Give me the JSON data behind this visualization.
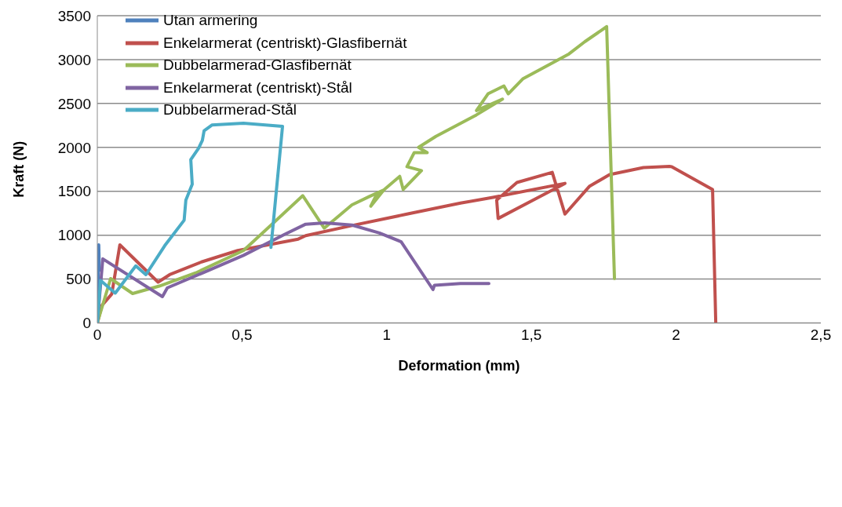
{
  "chart_data": {
    "type": "line",
    "xlabel": "Deformation (mm)",
    "ylabel": "Kraft (N)",
    "xlim": [
      0,
      2.5
    ],
    "xticks": [
      0,
      {
        "value": 0.5,
        "label": "0,5"
      },
      1,
      {
        "value": 1.5,
        "label": "1,5"
      },
      2,
      {
        "value": 2.5,
        "label": "2,5"
      }
    ],
    "ylim": [
      0,
      3500
    ],
    "yticks": [
      0,
      500,
      1000,
      1500,
      2000,
      2500,
      3000,
      3500
    ],
    "grid": "y",
    "legend": "top left",
    "marker": "none",
    "line_style": "solid",
    "series": [
      {
        "name": "Utan armering",
        "color": "#4f81bd",
        "x": [
          0,
          0.005,
          0.007
        ],
        "values": [
          0,
          890,
          600
        ]
      },
      {
        "name": "Enkelarmerat (centriskt)-Glasfibernät",
        "color": "#c0504d",
        "x": [
          0,
          0.016,
          0.05,
          0.078,
          0.21,
          0.25,
          0.36,
          0.485,
          0.694,
          0.72,
          0.88,
          1.07,
          1.255,
          1.367,
          1.616,
          1.385,
          1.38,
          1.45,
          1.572,
          1.616,
          1.7,
          1.77,
          1.887,
          1.977,
          1.985,
          2.126,
          2.137
        ],
        "values": [
          0,
          200,
          330,
          890,
          465,
          550,
          695,
          825,
          955,
          995,
          1110,
          1240,
          1365,
          1430,
          1590,
          1190,
          1400,
          1600,
          1715,
          1240,
          1555,
          1690,
          1770,
          1783,
          1780,
          1520,
          0
        ]
      },
      {
        "name": "Dubbelarmerad-Glasfibernät",
        "color": "#9bbb59",
        "x": [
          0,
          0.046,
          0.122,
          0.214,
          0.34,
          0.505,
          0.594,
          0.71,
          0.784,
          0.835,
          0.88,
          0.94,
          0.99,
          0.945,
          0.96,
          1.045,
          1.057,
          1.12,
          1.07,
          1.095,
          1.14,
          1.11,
          1.17,
          1.31,
          1.4,
          1.31,
          1.35,
          1.405,
          1.42,
          1.47,
          1.63,
          1.685,
          1.76,
          1.787
        ],
        "values": [
          0,
          505,
          335,
          420,
          570,
          825,
          1095,
          1450,
          1080,
          1220,
          1345,
          1440,
          1515,
          1330,
          1430,
          1670,
          1520,
          1735,
          1780,
          1940,
          1940,
          2000,
          2125,
          2370,
          2550,
          2420,
          2610,
          2700,
          2610,
          2780,
          3065,
          3205,
          3375,
          505
        ]
      },
      {
        "name": "Enkelarmerat (centriskt)-Stål",
        "color": "#8064a2",
        "x": [
          0,
          0.019,
          0.225,
          0.242,
          0.36,
          0.505,
          0.648,
          0.72,
          0.786,
          0.88,
          0.975,
          1.05,
          1.16,
          1.165,
          1.255,
          1.353
        ],
        "values": [
          0,
          730,
          300,
          400,
          565,
          770,
          1010,
          1125,
          1140,
          1115,
          1025,
          925,
          380,
          430,
          450,
          450
        ]
      },
      {
        "name": "Dubbelarmerad-Stål",
        "color": "#4bacc6",
        "x": [
          0,
          0.011,
          0.062,
          0.133,
          0.168,
          0.233,
          0.3,
          0.306,
          0.328,
          0.323,
          0.35,
          0.363,
          0.369,
          0.396,
          0.505,
          0.64,
          0.6
        ],
        "values": [
          0,
          485,
          340,
          650,
          550,
          880,
          1170,
          1400,
          1580,
          1860,
          1990,
          2080,
          2190,
          2255,
          2275,
          2240,
          860
        ]
      }
    ]
  }
}
